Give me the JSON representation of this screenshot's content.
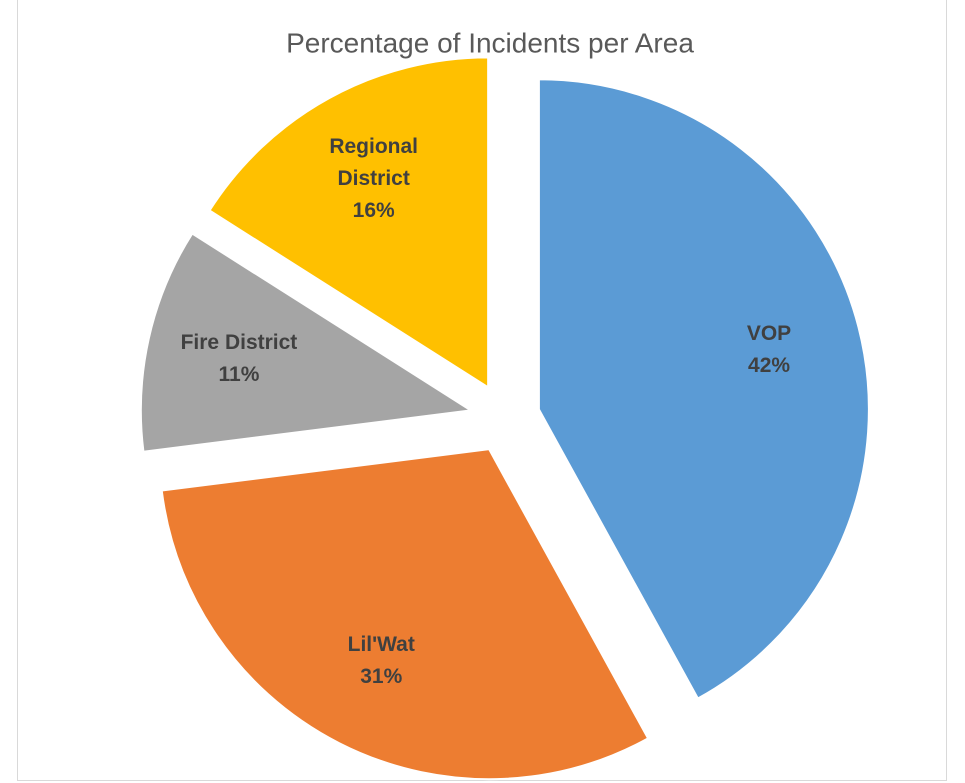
{
  "chart_data": {
    "type": "pie",
    "title": "Percentage of Incidents per Area",
    "categories": [
      "VOP",
      "Lil'Wat",
      "Fire District",
      "Regional District"
    ],
    "values": [
      42,
      31,
      11,
      16
    ],
    "value_labels": [
      "42%",
      "31%",
      "11%",
      "16%"
    ],
    "colors": [
      "#5b9bd5",
      "#ed7d31",
      "#a5a5a5",
      "#ffc000"
    ],
    "exploded": true
  }
}
